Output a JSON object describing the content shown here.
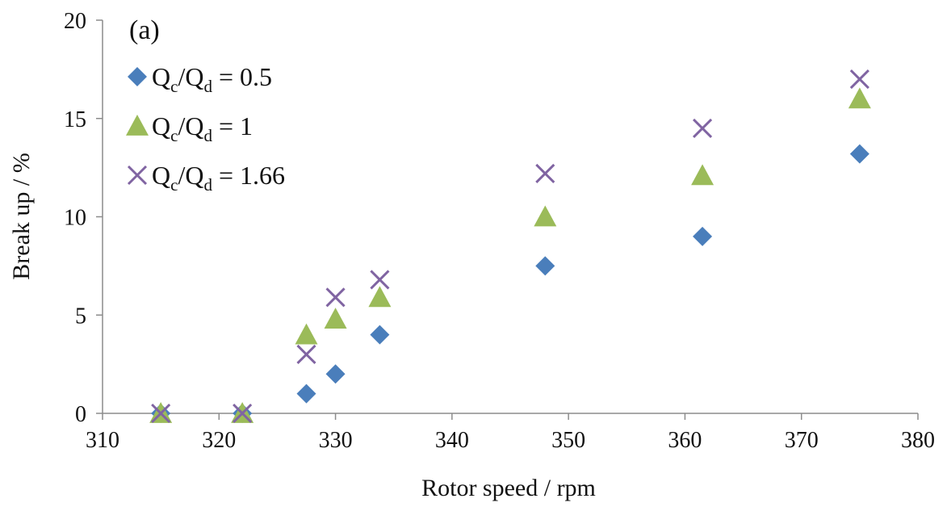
{
  "chart_data": {
    "type": "scatter",
    "panel_label": "(a)",
    "xlabel": "Rotor speed / rpm",
    "ylabel": "Break up / %",
    "xlim": [
      310,
      380
    ],
    "ylim": [
      0,
      20
    ],
    "xticks": [
      310,
      320,
      330,
      340,
      350,
      360,
      370,
      380
    ],
    "yticks": [
      0,
      5,
      10,
      15,
      20
    ],
    "grid": false,
    "legend_position": "top-left",
    "series": [
      {
        "name": "Qc/Qd = 0.5",
        "legend": {
          "q": "Q",
          "sub_c": "c",
          "slash": "/",
          "sub_d": "d",
          "rest": " = 0.5"
        },
        "marker": "diamond",
        "color": "#4a7ebb",
        "points": [
          [
            315,
            0
          ],
          [
            322,
            0
          ],
          [
            327.5,
            1
          ],
          [
            330,
            2
          ],
          [
            333.8,
            4
          ],
          [
            348,
            7.5
          ],
          [
            361.5,
            9
          ],
          [
            375,
            13.2
          ]
        ]
      },
      {
        "name": "Qc/Qd = 1",
        "legend": {
          "q": "Q",
          "sub_c": "c",
          "slash": "/",
          "sub_d": "d",
          "rest": " = 1"
        },
        "marker": "triangle",
        "color": "#9bbb59",
        "points": [
          [
            315,
            0
          ],
          [
            322,
            0
          ],
          [
            327.5,
            4
          ],
          [
            330,
            4.8
          ],
          [
            333.8,
            5.9
          ],
          [
            348,
            10
          ],
          [
            361.5,
            12.1
          ],
          [
            375,
            16
          ]
        ]
      },
      {
        "name": "Qc/Qd = 1.66",
        "legend": {
          "q": "Q",
          "sub_c": "c",
          "slash": "/",
          "sub_d": "d",
          "rest": " = 1.66"
        },
        "marker": "x",
        "color": "#8064a2",
        "points": [
          [
            315,
            0
          ],
          [
            322,
            0
          ],
          [
            327.5,
            3
          ],
          [
            330,
            5.9
          ],
          [
            333.8,
            6.8
          ],
          [
            348,
            12.2
          ],
          [
            361.5,
            14.5
          ],
          [
            375,
            17
          ]
        ]
      }
    ]
  }
}
